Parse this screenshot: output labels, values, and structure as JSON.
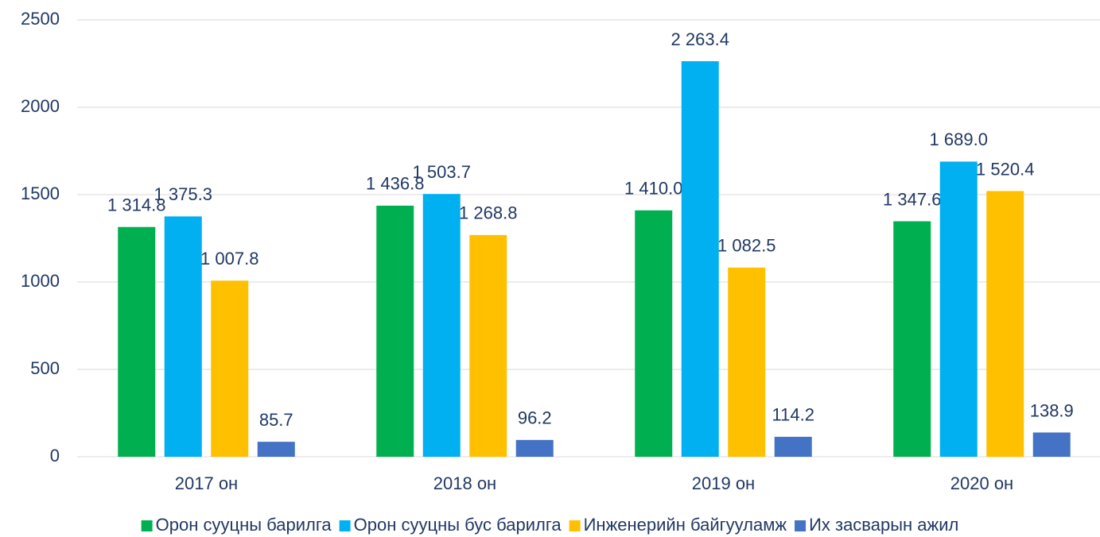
{
  "chart_data": {
    "type": "bar",
    "categories": [
      "2017 он",
      "2018 он",
      "2019 он",
      "2020 он"
    ],
    "series": [
      {
        "name": "Орон сууцны барилга",
        "color": "#00b050",
        "values": [
          1314.8,
          1436.8,
          1410.0,
          1347.6
        ],
        "value_labels": [
          "1 314.8",
          "1 436.8",
          "1 410.0",
          "1 347.6"
        ]
      },
      {
        "name": "Орон сууцны бус барилга",
        "color": "#00b0f0",
        "values": [
          1375.3,
          1503.7,
          2263.4,
          1689.0
        ],
        "value_labels": [
          "1 375.3",
          "1 503.7",
          "2 263.4",
          "1 689.0"
        ]
      },
      {
        "name": "Инженерийн байгууламж",
        "color": "#ffc000",
        "values": [
          1007.8,
          1268.8,
          1082.5,
          1520.4
        ],
        "value_labels": [
          "1 007.8",
          "1 268.8",
          "1 082.5",
          "1 520.4"
        ]
      },
      {
        "name": "Их засварын ажил",
        "color": "#4472c4",
        "values": [
          85.7,
          96.2,
          114.2,
          138.9
        ],
        "value_labels": [
          "85.7",
          "96.2",
          "114.2",
          "138.9"
        ]
      }
    ],
    "ylim": [
      0,
      2500
    ],
    "yticks": [
      0,
      500,
      1000,
      1500,
      2000,
      2500
    ],
    "grid": true,
    "legend": "bottom"
  }
}
